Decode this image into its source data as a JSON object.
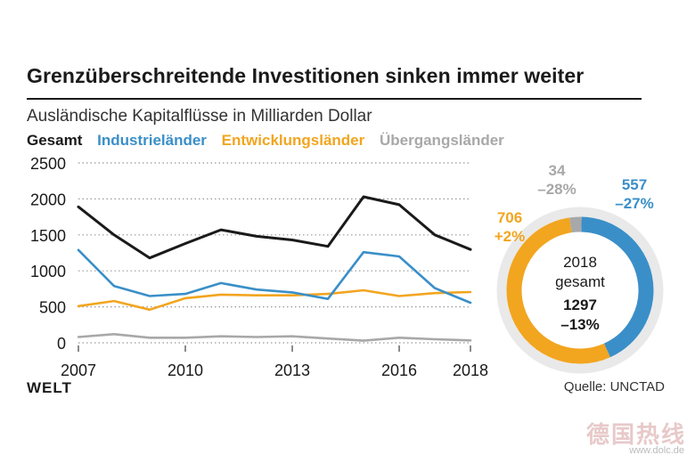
{
  "title": "Grenzüberschreitende Investitionen sinken immer weiter",
  "subtitle": "Ausländische Kapitalflüsse in Milliarden Dollar",
  "legend": {
    "gesamt": "Gesamt",
    "industrie": "Industrieländer",
    "entwicklung": "Entwicklungsländer",
    "uebergang": "Übergangsländer"
  },
  "colors": {
    "gesamt": "#1a1a1a",
    "industrie": "#3a8fc8",
    "entwicklung": "#f2a51f",
    "uebergang": "#a8a8a8",
    "grid": "#999999"
  },
  "logo": "WELT",
  "source": "Quelle: UNCTAD",
  "watermark": "德国热线",
  "watermark_url": "www.dolc.de",
  "chart_data": [
    {
      "type": "line",
      "title": "Ausländische Kapitalflüsse in Milliarden Dollar",
      "xlabel": "",
      "ylabel": "",
      "x": [
        2007,
        2008,
        2009,
        2010,
        2011,
        2012,
        2013,
        2014,
        2015,
        2016,
        2017,
        2018
      ],
      "xticks": [
        2007,
        2010,
        2013,
        2016,
        2018
      ],
      "yticks": [
        0,
        500,
        1000,
        1500,
        2000,
        2500
      ],
      "ylim": [
        0,
        2500
      ],
      "grid": "dotted horizontal",
      "series": [
        {
          "name": "Gesamt",
          "key": "gesamt",
          "values": [
            1890,
            1500,
            1180,
            1380,
            1570,
            1480,
            1430,
            1340,
            2030,
            1920,
            1500,
            1297
          ]
        },
        {
          "name": "Industrieländer",
          "key": "industrie",
          "values": [
            1290,
            790,
            650,
            680,
            830,
            740,
            700,
            610,
            1260,
            1200,
            760,
            557
          ]
        },
        {
          "name": "Entwicklungsländer",
          "key": "entwicklung",
          "values": [
            510,
            580,
            460,
            620,
            670,
            660,
            660,
            680,
            730,
            650,
            690,
            706
          ]
        },
        {
          "name": "Übergangsländer",
          "key": "uebergang",
          "values": [
            80,
            120,
            70,
            70,
            90,
            80,
            90,
            60,
            30,
            70,
            50,
            34
          ]
        }
      ]
    },
    {
      "type": "pie",
      "title": "2018 gesamt",
      "center_label": "2018",
      "center_sublabel": "gesamt",
      "total": "1297",
      "total_change": "–13%",
      "slices": [
        {
          "name": "Industrieländer",
          "key": "industrie",
          "value": 557,
          "value_label": "557",
          "change": "–27%"
        },
        {
          "name": "Entwicklungsländer",
          "key": "entwicklung",
          "value": 706,
          "value_label": "706",
          "change": "+2%"
        },
        {
          "name": "Übergangsländer",
          "key": "uebergang",
          "value": 34,
          "value_label": "34",
          "change": "–28%"
        }
      ]
    }
  ]
}
